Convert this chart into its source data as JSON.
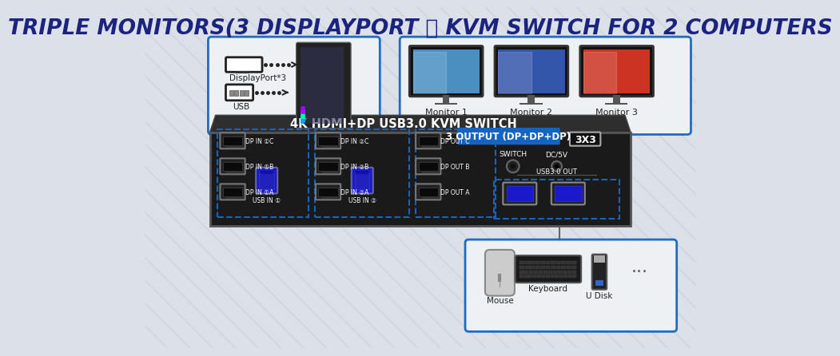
{
  "title": "TRIPLE MONITORS(3 DISPLAYPORT ） KVM SWITCH FOR 2 COMPUTERS",
  "title_color": "#1a237e",
  "bg_color": "#dce0e8",
  "kvm_color": "#111111",
  "kvm_label": "4K HDMI+DP USB3.0 KVM SWITCH",
  "kvm_label2": "3X3",
  "port_labels_g1": [
    "DP IN ①C",
    "DP IN ①B",
    "DP IN ①A"
  ],
  "port_labels_g2": [
    "DP IN ②C",
    "DP IN ②B",
    "DP IN ②A"
  ],
  "port_labels_out": [
    "DP OUT C",
    "DP OUT B",
    "DP OUT A"
  ],
  "usb_label1": "USB IN ①",
  "usb_label2": "USB IN ②",
  "switch_label": "SWITCH",
  "dc_label": "DC/5V",
  "usb_out_label": "USB3.0 OUT",
  "monitor_labels": [
    "Monitor 1",
    "Monitor 2",
    "Monitor 3"
  ],
  "output_label": "3 OUTPUT (DP+DP+DP)",
  "output_label_color": "#ffffff",
  "output_label_bg": "#1565c0",
  "pc_label_dp": "DisplayPort*3",
  "pc_label_usb": "USB",
  "peripheral_labels": [
    "Mouse",
    "Keyboard",
    "U Disk"
  ],
  "box_border_color": "#1565c0",
  "dashed_line_color": "#29b6f6",
  "kvm_top_color": "#2a2a2a",
  "kvm_face_color": "#1a1a1a",
  "stripe_color": "#c8cdd8"
}
